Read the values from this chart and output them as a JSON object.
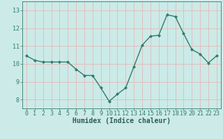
{
  "x": [
    0,
    1,
    2,
    3,
    4,
    5,
    6,
    7,
    8,
    9,
    10,
    11,
    12,
    13,
    14,
    15,
    16,
    17,
    18,
    19,
    20,
    21,
    22,
    23
  ],
  "y": [
    10.45,
    10.2,
    10.1,
    10.1,
    10.1,
    10.1,
    9.7,
    9.35,
    9.35,
    8.65,
    7.9,
    8.3,
    8.65,
    9.85,
    11.05,
    11.55,
    11.6,
    12.75,
    12.65,
    11.7,
    10.8,
    10.55,
    10.05,
    10.45
  ],
  "line_color": "#2e7d6e",
  "marker": "D",
  "marker_size": 2.0,
  "line_width": 1.0,
  "bg_color": "#cceae7",
  "grid_color_major": "#e8b0b0",
  "grid_color_minor": "#e8b0b0",
  "tick_color": "#2e7d6e",
  "label_color": "#2e5d58",
  "xlabel": "Humidex (Indice chaleur)",
  "ylim": [
    7.5,
    13.5
  ],
  "yticks": [
    8,
    9,
    10,
    11,
    12,
    13
  ],
  "xticks": [
    0,
    1,
    2,
    3,
    4,
    5,
    6,
    7,
    8,
    9,
    10,
    11,
    12,
    13,
    14,
    15,
    16,
    17,
    18,
    19,
    20,
    21,
    22,
    23
  ],
  "xlabel_fontsize": 7,
  "tick_fontsize": 6
}
